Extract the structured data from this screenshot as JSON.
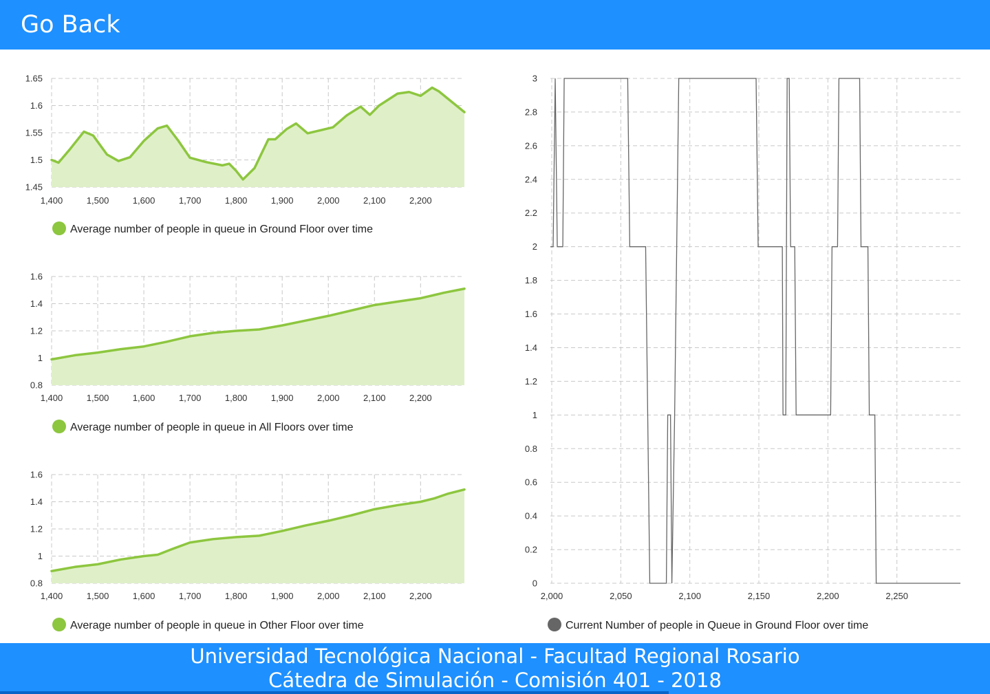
{
  "header": {
    "go_back_label": "Go Back"
  },
  "footer": {
    "line1": "Universidad Tecnológica Nacional - Facultad Regional Rosario",
    "line2": "Cátedra de Simulación - Comisión 401 - 2018"
  },
  "colors": {
    "header_bg": "#1e90ff",
    "series_green": "#8dc63f",
    "area_green": "#dff0c8",
    "series_gray": "#666666"
  },
  "chart_data": [
    {
      "id": "ground",
      "type": "area",
      "legend": "Average number of people in queue in Ground Floor over time",
      "grid": true,
      "xlim": [
        1400,
        2295
      ],
      "ylim": [
        1.45,
        1.65
      ],
      "xticks": [
        1400,
        1500,
        1600,
        1700,
        1800,
        1900,
        2000,
        2100,
        2200
      ],
      "xtick_labels": [
        "1,400",
        "1,500",
        "1,600",
        "1,700",
        "1,800",
        "1,900",
        "2,000",
        "2,100",
        "2,200"
      ],
      "yticks": [
        1.45,
        1.5,
        1.55,
        1.6,
        1.65
      ],
      "ytick_labels": [
        "1.45",
        "1.5",
        "1.55",
        "1.6",
        "1.65"
      ],
      "x": [
        1400,
        1415,
        1440,
        1470,
        1490,
        1520,
        1545,
        1570,
        1600,
        1630,
        1650,
        1675,
        1700,
        1735,
        1770,
        1785,
        1800,
        1815,
        1840,
        1870,
        1885,
        1910,
        1930,
        1955,
        1985,
        2010,
        2040,
        2070,
        2090,
        2110,
        2150,
        2175,
        2200,
        2225,
        2240,
        2295
      ],
      "y": [
        1.5,
        1.495,
        1.52,
        1.552,
        1.545,
        1.51,
        1.498,
        1.505,
        1.535,
        1.558,
        1.563,
        1.535,
        1.504,
        1.496,
        1.49,
        1.493,
        1.48,
        1.464,
        1.485,
        1.538,
        1.538,
        1.557,
        1.567,
        1.549,
        1.555,
        1.56,
        1.582,
        1.598,
        1.583,
        1.6,
        1.622,
        1.625,
        1.618,
        1.633,
        1.626,
        1.588
      ]
    },
    {
      "id": "all",
      "type": "area",
      "legend": "Average number of people in queue in All Floors over time",
      "grid": true,
      "xlim": [
        1400,
        2295
      ],
      "ylim": [
        0.8,
        1.6
      ],
      "xticks": [
        1400,
        1500,
        1600,
        1700,
        1800,
        1900,
        2000,
        2100,
        2200
      ],
      "xtick_labels": [
        "1,400",
        "1,500",
        "1,600",
        "1,700",
        "1,800",
        "1,900",
        "2,000",
        "2,100",
        "2,200"
      ],
      "yticks": [
        0.8,
        1.0,
        1.2,
        1.4,
        1.6
      ],
      "ytick_labels": [
        "0.8",
        "1",
        "1.2",
        "1.4",
        "1.6"
      ],
      "x": [
        1400,
        1450,
        1500,
        1550,
        1600,
        1650,
        1700,
        1750,
        1800,
        1850,
        1900,
        1950,
        2000,
        2050,
        2100,
        2150,
        2200,
        2250,
        2295
      ],
      "y": [
        0.99,
        1.02,
        1.04,
        1.065,
        1.085,
        1.12,
        1.16,
        1.185,
        1.2,
        1.21,
        1.24,
        1.275,
        1.31,
        1.35,
        1.39,
        1.415,
        1.44,
        1.48,
        1.51
      ]
    },
    {
      "id": "other",
      "type": "area",
      "legend": "Average number of people in queue in Other Floor over time",
      "grid": true,
      "xlim": [
        1400,
        2295
      ],
      "ylim": [
        0.8,
        1.6
      ],
      "xticks": [
        1400,
        1500,
        1600,
        1700,
        1800,
        1900,
        2000,
        2100,
        2200
      ],
      "xtick_labels": [
        "1,400",
        "1,500",
        "1,600",
        "1,700",
        "1,800",
        "1,900",
        "2,000",
        "2,100",
        "2,200"
      ],
      "yticks": [
        0.8,
        1.0,
        1.2,
        1.4,
        1.6
      ],
      "ytick_labels": [
        "0.8",
        "1",
        "1.2",
        "1.4",
        "1.6"
      ],
      "x": [
        1400,
        1450,
        1500,
        1550,
        1600,
        1630,
        1660,
        1700,
        1750,
        1800,
        1850,
        1900,
        1950,
        2000,
        2050,
        2100,
        2150,
        2200,
        2230,
        2260,
        2295
      ],
      "y": [
        0.89,
        0.92,
        0.94,
        0.975,
        1.0,
        1.01,
        1.05,
        1.1,
        1.125,
        1.14,
        1.15,
        1.185,
        1.225,
        1.26,
        1.3,
        1.345,
        1.375,
        1.4,
        1.425,
        1.46,
        1.49
      ]
    },
    {
      "id": "current",
      "type": "line",
      "step": true,
      "legend": "Current Number of people in Queue in Ground Floor over time",
      "grid": true,
      "xlim": [
        1999,
        2296
      ],
      "ylim": [
        0,
        3
      ],
      "xticks": [
        2000,
        2050,
        2100,
        2150,
        2200,
        2250
      ],
      "xtick_labels": [
        "2,000",
        "2,050",
        "2,100",
        "2,150",
        "2,200",
        "2,250"
      ],
      "yticks": [
        0,
        0.2,
        0.4,
        0.6,
        0.8,
        1,
        1.2,
        1.4,
        1.6,
        1.8,
        2,
        2.2,
        2.4,
        2.6,
        2.8,
        3
      ],
      "ytick_labels": [
        "0",
        "0.2",
        "0.4",
        "0.6",
        "0.8",
        "1",
        "1.2",
        "1.4",
        "1.6",
        "1.8",
        "2",
        "2.2",
        "2.4",
        "2.6",
        "2.8",
        "3"
      ],
      "x": [
        1995,
        2001,
        2002.5,
        2004,
        2008,
        2009,
        2055,
        2056.5,
        2068,
        2069.5,
        2071,
        2083,
        2084,
        2086,
        2087,
        2089,
        2090.5,
        2092,
        2148,
        2149.5,
        2167,
        2167.5,
        2169.5,
        2170.5,
        2172,
        2173,
        2176,
        2177,
        2202,
        2203,
        2207,
        2208,
        2223,
        2224,
        2229,
        2230,
        2234,
        2235,
        2296
      ],
      "y": [
        2,
        2,
        3,
        2,
        2,
        3,
        3,
        2,
        2,
        1,
        0,
        0,
        1,
        1,
        0,
        1,
        2,
        3,
        3,
        2,
        2,
        1,
        1,
        3,
        3,
        2,
        2,
        1,
        1,
        2,
        2,
        3,
        3,
        2,
        2,
        1,
        1,
        0,
        0
      ]
    }
  ]
}
